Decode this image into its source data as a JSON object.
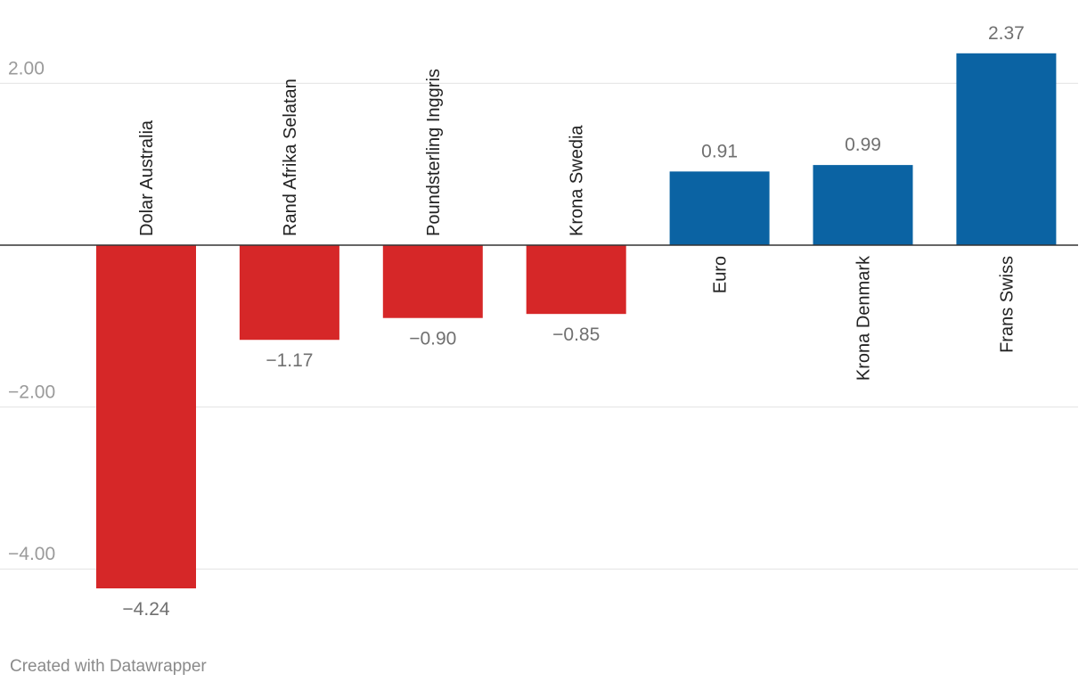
{
  "chart_data": {
    "type": "bar",
    "orientation": "vertical",
    "title": "",
    "xlabel": "",
    "ylabel": "",
    "ylim": [
      -4.24,
      2.37
    ],
    "yticks": [
      {
        "value": 2,
        "label": "2.00"
      },
      {
        "value": -2,
        "label": "-2.00"
      },
      {
        "value": -4,
        "label": "-4.00"
      }
    ],
    "grid": true,
    "legend": "none",
    "categories": [
      "Dolar Australia",
      "Rand Afrika Selatan",
      "Poundsterling Inggris",
      "Krona Swedia",
      "Euro",
      "Krona Denmark",
      "Frans Swiss"
    ],
    "values": [
      -4.24,
      -1.17,
      -0.9,
      -0.85,
      0.91,
      0.99,
      2.37
    ],
    "value_labels": [
      "-4.24",
      "-1.17",
      "-0.90",
      "-0.85",
      "0.91",
      "0.99",
      "2.37"
    ],
    "colors": {
      "negative": "#d62728",
      "positive": "#0b63a3"
    }
  },
  "footer": {
    "credit": "Created with Datawrapper"
  }
}
